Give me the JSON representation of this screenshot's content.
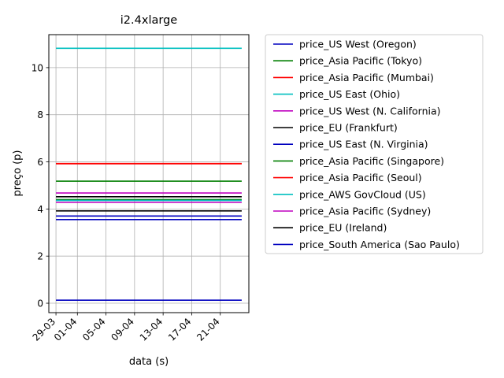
{
  "chart_data": {
    "type": "line",
    "title": "i2.4xlarge",
    "xlabel": "data (s)",
    "ylabel": "preço (p)",
    "x_start": "2017-03-29",
    "x_end": "2017-04-24",
    "xlim": [
      "2017-03-28",
      "2017-04-25"
    ],
    "ylim": [
      -0.4,
      11.4
    ],
    "x_ticks": [
      {
        "date": "2017-03-29",
        "label": "29-03"
      },
      {
        "date": "2017-04-01",
        "label": "01-04"
      },
      {
        "date": "2017-04-05",
        "label": "05-04"
      },
      {
        "date": "2017-04-09",
        "label": "09-04"
      },
      {
        "date": "2017-04-13",
        "label": "13-04"
      },
      {
        "date": "2017-04-17",
        "label": "17-04"
      },
      {
        "date": "2017-04-21",
        "label": "21-04"
      }
    ],
    "y_ticks": [
      0,
      2,
      4,
      6,
      8,
      10
    ],
    "grid": true,
    "legend_position": "outside right",
    "series": [
      {
        "name": "price_US West (Oregon)",
        "color": "#0000bf",
        "value": 3.7
      },
      {
        "name": "price_Asia Pacific (Tokyo)",
        "color": "#007f00",
        "value": 5.18
      },
      {
        "name": "price_Asia Pacific (Mumbai)",
        "color": "#ff0000",
        "value": 5.92
      },
      {
        "name": "price_US East (Ohio)",
        "color": "#00bfbf",
        "value": 10.82
      },
      {
        "name": "price_US West (N. California)",
        "color": "#bf00bf",
        "value": 4.68
      },
      {
        "name": "price_EU (Frankfurt)",
        "color": "#000000",
        "value": 4.52
      },
      {
        "name": "price_US East (N. Virginia)",
        "color": "#0000bf",
        "value": 0.13
      },
      {
        "name": "price_Asia Pacific (Singapore)",
        "color": "#007f00",
        "value": 4.4
      },
      {
        "name": "price_Asia Pacific (Seoul)",
        "color": "#ff0000",
        "value": 5.93
      },
      {
        "name": "price_AWS GovCloud (US)",
        "color": "#00bfbf",
        "value": 4.36
      },
      {
        "name": "price_Asia Pacific (Sydney)",
        "color": "#bf00bf",
        "value": 4.28
      },
      {
        "name": "price_EU (Ireland)",
        "color": "#000000",
        "value": 3.92
      },
      {
        "name": "price_South America (Sao Paulo)",
        "color": "#0000bf",
        "value": 3.55
      }
    ]
  }
}
